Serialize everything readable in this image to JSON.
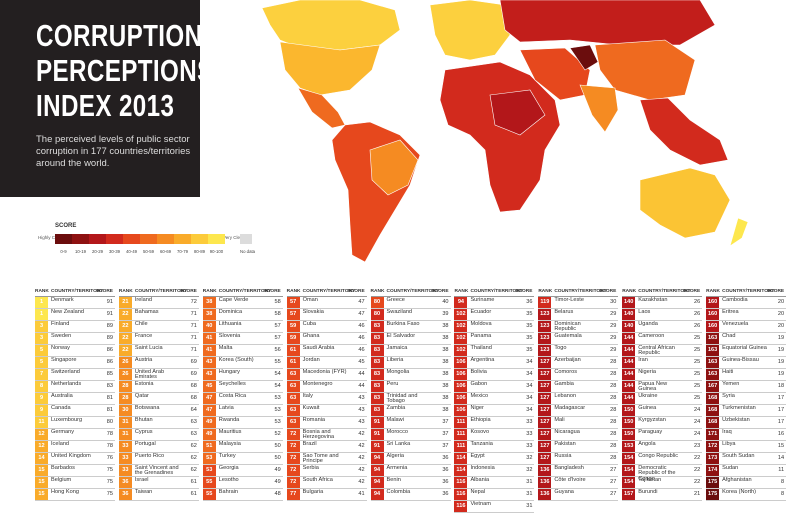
{
  "header": {
    "title": [
      "CORRUPTION",
      "PERCEPTIONS",
      "INDEX 2013"
    ],
    "subtitle": "The perceived levels of public sector corruption in 177 countries/territories around the world."
  },
  "legend": {
    "title": "SCORE",
    "low": "Highly Corrupt",
    "high": "Very Clean",
    "bins": [
      "0-9",
      "10-19",
      "20-29",
      "30-39",
      "40-49",
      "50-59",
      "60-69",
      "70-79",
      "80-89",
      "90-100"
    ],
    "colors": [
      "#6b0d0d",
      "#8e1111",
      "#b3171a",
      "#d22a1d",
      "#e6481d",
      "#ef6a1f",
      "#f58b22",
      "#f9ab2a",
      "#fccb3a",
      "#fde74e"
    ],
    "no_data": "No data",
    "no_data_color": "#dcdcdc"
  },
  "table": {
    "headers": [
      "RANK",
      "COUNTRY/TERRITORY",
      "SCORE"
    ],
    "columns": [
      [
        [
          1,
          "Denmark",
          91
        ],
        [
          1,
          "New Zealand",
          91
        ],
        [
          3,
          "Finland",
          89
        ],
        [
          3,
          "Sweden",
          89
        ],
        [
          5,
          "Norway",
          86
        ],
        [
          5,
          "Singapore",
          86
        ],
        [
          7,
          "Switzerland",
          85
        ],
        [
          8,
          "Netherlands",
          83
        ],
        [
          9,
          "Australia",
          81
        ],
        [
          9,
          "Canada",
          81
        ],
        [
          11,
          "Luxembourg",
          80
        ],
        [
          12,
          "Germany",
          78
        ],
        [
          12,
          "Iceland",
          78
        ],
        [
          14,
          "United Kingdom",
          76
        ],
        [
          15,
          "Barbados",
          75
        ],
        [
          15,
          "Belgium",
          75
        ],
        [
          15,
          "Hong Kong",
          75
        ]
      ],
      [
        [
          21,
          "Ireland",
          72
        ],
        [
          22,
          "Bahamas",
          71
        ],
        [
          22,
          "Chile",
          71
        ],
        [
          22,
          "France",
          71
        ],
        [
          22,
          "Saint Lucia",
          71
        ],
        [
          26,
          "Austria",
          69
        ],
        [
          26,
          "United Arab Emirates",
          69
        ],
        [
          28,
          "Estonia",
          68
        ],
        [
          28,
          "Qatar",
          68
        ],
        [
          30,
          "Botswana",
          64
        ],
        [
          31,
          "Bhutan",
          63
        ],
        [
          31,
          "Cyprus",
          63
        ],
        [
          33,
          "Portugal",
          62
        ],
        [
          33,
          "Puerto Rico",
          62
        ],
        [
          33,
          "Saint Vincent and the Grenadines",
          62
        ],
        [
          36,
          "Israel",
          61
        ],
        [
          36,
          "Taiwan",
          61
        ]
      ],
      [
        [
          38,
          "Cape Verde",
          58
        ],
        [
          38,
          "Dominica",
          58
        ],
        [
          40,
          "Lithuania",
          57
        ],
        [
          41,
          "Slovenia",
          57
        ],
        [
          41,
          "Malta",
          56
        ],
        [
          43,
          "Korea (South)",
          55
        ],
        [
          43,
          "Hungary",
          54
        ],
        [
          45,
          "Seychelles",
          54
        ],
        [
          47,
          "Costa Rica",
          53
        ],
        [
          47,
          "Latvia",
          53
        ],
        [
          49,
          "Rwanda",
          53
        ],
        [
          49,
          "Mauritius",
          52
        ],
        [
          51,
          "Malaysia",
          50
        ],
        [
          53,
          "Turkey",
          50
        ],
        [
          53,
          "Georgia",
          49
        ],
        [
          55,
          "Lesotho",
          49
        ],
        [
          55,
          "Bahrain",
          48
        ]
      ],
      [
        [
          57,
          "Oman",
          47
        ],
        [
          57,
          "Slovakia",
          47
        ],
        [
          59,
          "Cuba",
          46
        ],
        [
          59,
          "Ghana",
          46
        ],
        [
          61,
          "Saudi Arabia",
          46
        ],
        [
          61,
          "Jordan",
          45
        ],
        [
          63,
          "Macedonia (FYR)",
          44
        ],
        [
          63,
          "Montenegro",
          44
        ],
        [
          63,
          "Italy",
          43
        ],
        [
          63,
          "Kuwait",
          43
        ],
        [
          63,
          "Romania",
          43
        ],
        [
          72,
          "Bosnia and Herzegovina",
          42
        ],
        [
          72,
          "Brazil",
          42
        ],
        [
          72,
          "Sao Tome and Principe",
          42
        ],
        [
          72,
          "Serbia",
          42
        ],
        [
          72,
          "South Africa",
          42
        ],
        [
          77,
          "Bulgaria",
          41
        ]
      ],
      [
        [
          80,
          "Greece",
          40
        ],
        [
          80,
          "Swaziland",
          39
        ],
        [
          83,
          "Burkina Faso",
          38
        ],
        [
          83,
          "El Salvador",
          38
        ],
        [
          83,
          "Jamaica",
          38
        ],
        [
          83,
          "Liberia",
          38
        ],
        [
          83,
          "Mongolia",
          38
        ],
        [
          83,
          "Peru",
          38
        ],
        [
          83,
          "Trinidad and Tobago",
          38
        ],
        [
          83,
          "Zambia",
          38
        ],
        [
          91,
          "Malawi",
          37
        ],
        [
          91,
          "Morocco",
          37
        ],
        [
          91,
          "Sri Lanka",
          37
        ],
        [
          94,
          "Algeria",
          36
        ],
        [
          94,
          "Armenia",
          36
        ],
        [
          94,
          "Benin",
          36
        ],
        [
          94,
          "Colombia",
          36
        ]
      ],
      [
        [
          94,
          "Suriname",
          36
        ],
        [
          102,
          "Ecuador",
          35
        ],
        [
          102,
          "Moldova",
          35
        ],
        [
          102,
          "Panama",
          35
        ],
        [
          102,
          "Thailand",
          35
        ],
        [
          106,
          "Argentina",
          34
        ],
        [
          106,
          "Bolivia",
          34
        ],
        [
          106,
          "Gabon",
          34
        ],
        [
          106,
          "Mexico",
          34
        ],
        [
          106,
          "Niger",
          34
        ],
        [
          111,
          "Ethiopia",
          33
        ],
        [
          111,
          "Kosovo",
          33
        ],
        [
          111,
          "Tanzania",
          33
        ],
        [
          114,
          "Egypt",
          32
        ],
        [
          114,
          "Indonesia",
          32
        ],
        [
          116,
          "Albania",
          31
        ],
        [
          116,
          "Nepal",
          31
        ],
        [
          116,
          "Vietnam",
          31
        ]
      ],
      [
        [
          119,
          "Timor-Leste",
          30
        ],
        [
          123,
          "Belarus",
          29
        ],
        [
          123,
          "Dominican Republic",
          29
        ],
        [
          123,
          "Guatemala",
          29
        ],
        [
          123,
          "Togo",
          29
        ],
        [
          127,
          "Azerbaijan",
          28
        ],
        [
          127,
          "Comoros",
          28
        ],
        [
          127,
          "Gambia",
          28
        ],
        [
          127,
          "Lebanon",
          28
        ],
        [
          127,
          "Madagascar",
          28
        ],
        [
          127,
          "Mali",
          28
        ],
        [
          127,
          "Nicaragua",
          28
        ],
        [
          127,
          "Pakistan",
          28
        ],
        [
          127,
          "Russia",
          28
        ],
        [
          136,
          "Bangladesh",
          27
        ],
        [
          136,
          "Côte d'Ivoire",
          27
        ],
        [
          136,
          "Guyana",
          27
        ]
      ],
      [
        [
          140,
          "Kazakhstan",
          26
        ],
        [
          140,
          "Laos",
          26
        ],
        [
          140,
          "Uganda",
          26
        ],
        [
          144,
          "Cameroon",
          25
        ],
        [
          144,
          "Central African Republic",
          25
        ],
        [
          144,
          "Iran",
          25
        ],
        [
          144,
          "Nigeria",
          25
        ],
        [
          144,
          "Papua New Guinea",
          25
        ],
        [
          144,
          "Ukraine",
          25
        ],
        [
          150,
          "Guinea",
          24
        ],
        [
          150,
          "Kyrgyzstan",
          24
        ],
        [
          150,
          "Paraguay",
          24
        ],
        [
          153,
          "Angola",
          23
        ],
        [
          154,
          "Congo Republic",
          22
        ],
        [
          154,
          "Democratic Republic of the Congo",
          22
        ],
        [
          154,
          "Tajikistan",
          22
        ],
        [
          157,
          "Burundi",
          21
        ]
      ],
      [
        [
          160,
          "Cambodia",
          20
        ],
        [
          160,
          "Eritrea",
          20
        ],
        [
          160,
          "Venezuela",
          20
        ],
        [
          163,
          "Chad",
          19
        ],
        [
          163,
          "Equatorial Guinea",
          19
        ],
        [
          163,
          "Guinea-Bissau",
          19
        ],
        [
          163,
          "Haiti",
          19
        ],
        [
          167,
          "Yemen",
          18
        ],
        [
          168,
          "Syria",
          17
        ],
        [
          168,
          "Turkmenistan",
          17
        ],
        [
          168,
          "Uzbekistan",
          17
        ],
        [
          171,
          "Iraq",
          16
        ],
        [
          172,
          "Libya",
          15
        ],
        [
          173,
          "South Sudan",
          14
        ],
        [
          174,
          "Sudan",
          11
        ],
        [
          175,
          "Afghanistan",
          8
        ],
        [
          175,
          "Korea (North)",
          8
        ]
      ]
    ]
  }
}
